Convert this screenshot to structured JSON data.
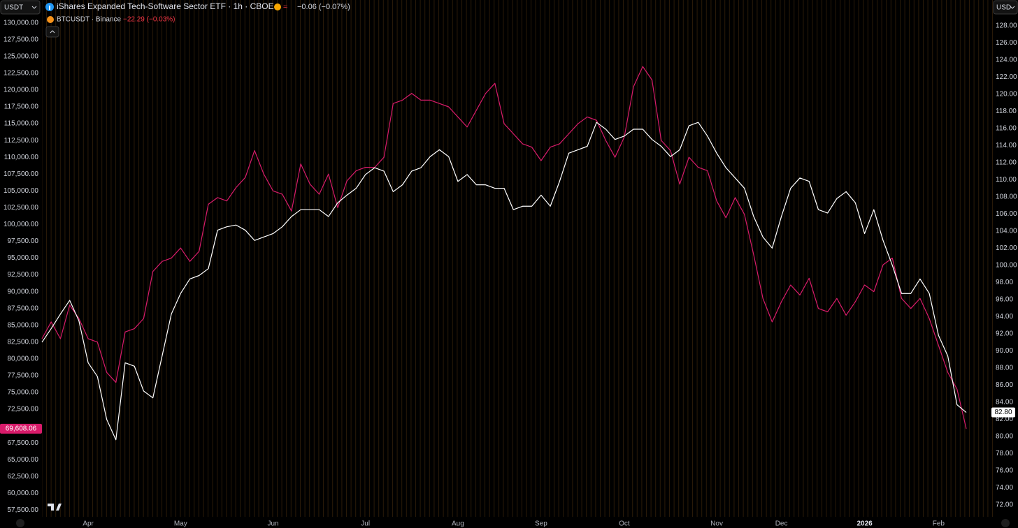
{
  "chart_data": {
    "type": "line",
    "left_currency": "USDT",
    "right_currency": "USD",
    "categories": [
      null,
      null,
      null,
      null,
      null,
      "Apr",
      null,
      null,
      null,
      null,
      null,
      null,
      null,
      null,
      null,
      "May",
      null,
      null,
      null,
      null,
      null,
      null,
      null,
      null,
      null,
      "Jun",
      null,
      null,
      null,
      null,
      null,
      null,
      null,
      null,
      null,
      "Jul",
      null,
      null,
      null,
      null,
      null,
      null,
      null,
      null,
      null,
      "Aug",
      null,
      null,
      null,
      null,
      null,
      null,
      null,
      null,
      "Sep",
      null,
      null,
      null,
      null,
      null,
      null,
      null,
      null,
      "Oct",
      null,
      null,
      null,
      null,
      null,
      null,
      null,
      null,
      null,
      "Nov",
      null,
      null,
      null,
      null,
      null,
      null,
      "Dec",
      null,
      null,
      null,
      null,
      null,
      null,
      null,
      null,
      "2026",
      null,
      null,
      null,
      null,
      null,
      null,
      null,
      "Feb",
      null,
      null,
      null
    ],
    "series": [
      {
        "name": "iShares Expanded Tech-Software Sector ETF · 1h · CBOE",
        "change": "−0.06 (−0.07%)",
        "color": "#ffffff",
        "axis": "y2",
        "price_label": "82.80",
        "values": [
          91,
          92.6,
          94.3,
          95.9,
          93.5,
          88.6,
          87,
          82,
          79.6,
          88.6,
          88.2,
          85.3,
          84.5,
          89.4,
          94.3,
          96.7,
          98.4,
          98.8,
          99.6,
          104.1,
          104.5,
          104.7,
          104.1,
          102.9,
          103.3,
          103.7,
          104.5,
          105.7,
          106.5,
          106.5,
          106.5,
          105.7,
          107.3,
          108.2,
          109,
          110.6,
          111.4,
          111,
          108.6,
          109.4,
          111,
          111.4,
          112.7,
          113.5,
          112.7,
          109.8,
          110.6,
          109.4,
          109.4,
          109,
          109,
          106.5,
          106.9,
          106.9,
          108.2,
          106.9,
          109.8,
          113.1,
          113.5,
          113.9,
          116.7,
          115.9,
          114.7,
          115.1,
          115.9,
          115.9,
          114.7,
          113.9,
          112.7,
          113.5,
          116.3,
          116.7,
          115.1,
          113.1,
          111.4,
          110.2,
          109,
          105.7,
          103.3,
          102,
          105.7,
          109,
          110.2,
          109.8,
          106.5,
          106.1,
          107.8,
          108.6,
          107.3,
          103.7,
          106.5,
          102.9,
          100,
          96.7,
          96.7,
          98.4,
          96.7,
          91.8,
          89.4,
          83.7,
          82.8
        ]
      },
      {
        "name": "BTCUSDT · Binance",
        "change": "−22.29 (−0.03%)",
        "color": "#d81b6a",
        "price_label": "69,608.06",
        "values": [
          83000,
          85500,
          83000,
          88000,
          86000,
          83000,
          82500,
          78000,
          76500,
          84000,
          84500,
          86000,
          93000,
          94500,
          95000,
          96500,
          94500,
          96000,
          103000,
          104000,
          103500,
          105500,
          107000,
          111000,
          107500,
          105000,
          104500,
          102000,
          109000,
          106000,
          104500,
          107500,
          102500,
          106500,
          108000,
          108500,
          108500,
          110000,
          118000,
          118500,
          119500,
          118500,
          118500,
          118000,
          117500,
          116000,
          114500,
          117000,
          119500,
          121000,
          115000,
          113500,
          112000,
          111500,
          109500,
          111500,
          112000,
          113500,
          115000,
          116000,
          115500,
          112500,
          110000,
          113000,
          120500,
          123500,
          121500,
          112500,
          111000,
          106000,
          110000,
          108500,
          108000,
          103500,
          101000,
          104000,
          101500,
          95500,
          89000,
          85500,
          88500,
          91000,
          89500,
          92000,
          87500,
          87000,
          89000,
          86500,
          88500,
          91000,
          90000,
          94000,
          95000,
          89000,
          87500,
          89000,
          86000,
          82000,
          78000,
          75500,
          69608.06
        ]
      }
    ],
    "ylim": [
      56500,
      133400
    ],
    "yticks": [
      {
        "value": 130000,
        "label": "130,000.00"
      },
      {
        "value": 127500,
        "label": "127,500.00"
      },
      {
        "value": 125000,
        "label": "125,000.00"
      },
      {
        "value": 122500,
        "label": "122,500.00"
      },
      {
        "value": 120000,
        "label": "120,000.00"
      },
      {
        "value": 117500,
        "label": "117,500.00"
      },
      {
        "value": 115000,
        "label": "115,000.00"
      },
      {
        "value": 112500,
        "label": "112,500.00"
      },
      {
        "value": 110000,
        "label": "110,000.00"
      },
      {
        "value": 107500,
        "label": "107,500.00"
      },
      {
        "value": 105000,
        "label": "105,000.00"
      },
      {
        "value": 102500,
        "label": "102,500.00"
      },
      {
        "value": 100000,
        "label": "100,000.00"
      },
      {
        "value": 97500,
        "label": "97,500.00"
      },
      {
        "value": 95000,
        "label": "95,000.00"
      },
      {
        "value": 92500,
        "label": "92,500.00"
      },
      {
        "value": 90000,
        "label": "90,000.00"
      },
      {
        "value": 87500,
        "label": "87,500.00"
      },
      {
        "value": 85000,
        "label": "85,000.00"
      },
      {
        "value": 82500,
        "label": "82,500.00"
      },
      {
        "value": 80000,
        "label": "80,000.00"
      },
      {
        "value": 77500,
        "label": "77,500.00"
      },
      {
        "value": 75000,
        "label": "75,000.00"
      },
      {
        "value": 72500,
        "label": "72,500.00"
      },
      {
        "value": 67500,
        "label": "67,500.00"
      },
      {
        "value": 65000,
        "label": "65,000.00"
      },
      {
        "value": 62500,
        "label": "62,500.00"
      },
      {
        "value": 60000,
        "label": "60,000.00"
      },
      {
        "value": 57500,
        "label": "57,500.00"
      }
    ],
    "y2lim": [
      70.6,
      131.0
    ],
    "y2ticks": [
      {
        "value": 128,
        "label": "128.00"
      },
      {
        "value": 126,
        "label": "126.00"
      },
      {
        "value": 124,
        "label": "124.00"
      },
      {
        "value": 122,
        "label": "122.00"
      },
      {
        "value": 120,
        "label": "120.00"
      },
      {
        "value": 118,
        "label": "118.00"
      },
      {
        "value": 116,
        "label": "116.00"
      },
      {
        "value": 114,
        "label": "114.00"
      },
      {
        "value": 112,
        "label": "112.00"
      },
      {
        "value": 110,
        "label": "110.00"
      },
      {
        "value": 108,
        "label": "108.00"
      },
      {
        "value": 106,
        "label": "106.00"
      },
      {
        "value": 104,
        "label": "104.00"
      },
      {
        "value": 102,
        "label": "102.00"
      },
      {
        "value": 100,
        "label": "100.00"
      },
      {
        "value": 98,
        "label": "98.00"
      },
      {
        "value": 96,
        "label": "96.00"
      },
      {
        "value": 94,
        "label": "94.00"
      },
      {
        "value": 92,
        "label": "92.00"
      },
      {
        "value": 90,
        "label": "90.00"
      },
      {
        "value": 88,
        "label": "88.00"
      },
      {
        "value": 86,
        "label": "86.00"
      },
      {
        "value": 84,
        "label": "84.00"
      },
      {
        "value": 82,
        "label": "82.00"
      },
      {
        "value": 80,
        "label": "80.00"
      },
      {
        "value": 78,
        "label": "78.00"
      },
      {
        "value": 76,
        "label": "76.00"
      },
      {
        "value": 74,
        "label": "74.00"
      },
      {
        "value": 72,
        "label": "72.00"
      }
    ],
    "grid": false
  }
}
